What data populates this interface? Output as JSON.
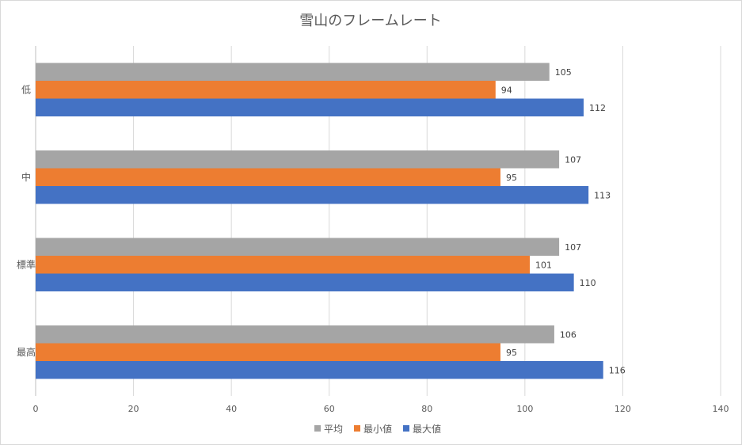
{
  "chart_data": {
    "type": "bar",
    "orientation": "horizontal",
    "title": "雪山のフレームレート",
    "categories": [
      "低",
      "中",
      "標準",
      "最高"
    ],
    "series": [
      {
        "name": "平均",
        "color": "#a5a5a5",
        "values": [
          105,
          107,
          107,
          106
        ]
      },
      {
        "name": "最小値",
        "color": "#ed7d31",
        "values": [
          94,
          95,
          101,
          95
        ]
      },
      {
        "name": "最大値",
        "color": "#4472c4",
        "values": [
          112,
          113,
          110,
          116
        ]
      }
    ],
    "xlim": [
      0,
      140
    ],
    "xticks": [
      0,
      20,
      40,
      60,
      80,
      100,
      120,
      140
    ],
    "grid": true,
    "data_labels": true,
    "legend_position": "bottom"
  }
}
